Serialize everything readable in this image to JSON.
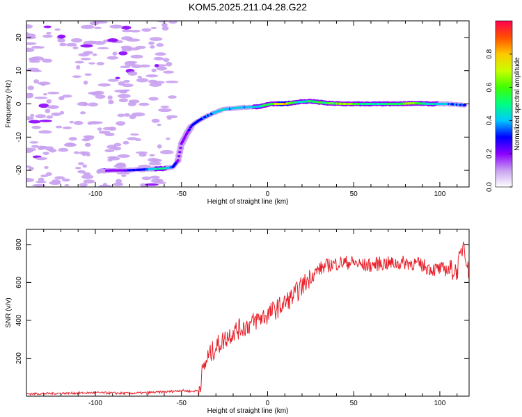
{
  "title": "KOM5.2025.211.04.28.G22",
  "chart_data": [
    {
      "type": "heatmap",
      "xlabel": "Height of straight line (km)",
      "ylabel": "Frequency (Hz)",
      "xlim": [
        -140,
        117
      ],
      "ylim": [
        -25,
        25
      ],
      "xticks": [
        -100,
        -50,
        0,
        50,
        100
      ],
      "yticks": [
        -20,
        -10,
        0,
        10,
        20
      ],
      "colorbar": {
        "label": "Normalized spectral amplitude",
        "range": [
          0,
          1
        ],
        "ticks": [
          "0.0",
          "0.2",
          "0.4",
          "0.6",
          "0.8"
        ],
        "colors": [
          "#ffffff",
          "#c8a0f0",
          "#8c00ff",
          "#0000ff",
          "#00c8ff",
          "#00ff80",
          "#40ff00",
          "#c8ff00",
          "#ffc800",
          "#ff5000",
          "#ff0050"
        ]
      },
      "ridge": [
        {
          "x": -98,
          "y": -20.2,
          "a": 0.12
        },
        {
          "x": -90,
          "y": -20.0,
          "a": 0.18
        },
        {
          "x": -82,
          "y": -20.0,
          "a": 0.24
        },
        {
          "x": -74,
          "y": -19.8,
          "a": 0.3
        },
        {
          "x": -66,
          "y": -19.6,
          "a": 0.42
        },
        {
          "x": -60,
          "y": -19.4,
          "a": 0.5
        },
        {
          "x": -55,
          "y": -19.0,
          "a": 0.3
        },
        {
          "x": -52,
          "y": -17.0,
          "a": 0.22
        },
        {
          "x": -50,
          "y": -12.0,
          "a": 0.18
        },
        {
          "x": -47,
          "y": -9.0,
          "a": 0.22
        },
        {
          "x": -44,
          "y": -6.5,
          "a": 0.26
        },
        {
          "x": -40,
          "y": -5.0,
          "a": 0.3
        },
        {
          "x": -35,
          "y": -3.6,
          "a": 0.34
        },
        {
          "x": -30,
          "y": -2.4,
          "a": 0.4
        },
        {
          "x": -25,
          "y": -1.6,
          "a": 0.42
        },
        {
          "x": -18,
          "y": -1.2,
          "a": 0.4
        },
        {
          "x": -12,
          "y": -1.0,
          "a": 0.4
        },
        {
          "x": -5,
          "y": -0.8,
          "a": 0.45
        },
        {
          "x": 2,
          "y": 0.0,
          "a": 0.55
        },
        {
          "x": 10,
          "y": 0.0,
          "a": 0.85
        },
        {
          "x": 18,
          "y": 0.6,
          "a": 0.45
        },
        {
          "x": 25,
          "y": 0.8,
          "a": 0.5
        },
        {
          "x": 35,
          "y": 0.2,
          "a": 0.55
        },
        {
          "x": 45,
          "y": 0.0,
          "a": 0.7
        },
        {
          "x": 55,
          "y": 0.0,
          "a": 0.5
        },
        {
          "x": 65,
          "y": 0.0,
          "a": 0.45
        },
        {
          "x": 75,
          "y": 0.0,
          "a": 0.55
        },
        {
          "x": 85,
          "y": 0.2,
          "a": 0.65
        },
        {
          "x": 95,
          "y": 0.0,
          "a": 0.45
        },
        {
          "x": 105,
          "y": 0.0,
          "a": 0.4
        },
        {
          "x": 115,
          "y": -0.4,
          "a": 0.3
        }
      ]
    },
    {
      "type": "line",
      "xlabel": "Height of straight line (km)",
      "ylabel": "SNR (v/v)",
      "xlim": [
        -140,
        117
      ],
      "ylim": [
        0,
        880
      ],
      "xticks": [
        -100,
        -50,
        0,
        50,
        100
      ],
      "yticks": [
        200,
        400,
        600,
        800
      ],
      "series": [
        {
          "color": "#e8202a",
          "points": [
            [
              -140,
              12
            ],
            [
              -120,
              15
            ],
            [
              -100,
              18
            ],
            [
              -80,
              15
            ],
            [
              -60,
              22
            ],
            [
              -50,
              30
            ],
            [
              -44,
              25
            ],
            [
              -40,
              30
            ],
            [
              -38,
              120
            ],
            [
              -35,
              200
            ],
            [
              -30,
              260
            ],
            [
              -25,
              300
            ],
            [
              -20,
              340
            ],
            [
              -15,
              360
            ],
            [
              -10,
              380
            ],
            [
              -5,
              410
            ],
            [
              0,
              430
            ],
            [
              5,
              460
            ],
            [
              10,
              490
            ],
            [
              15,
              530
            ],
            [
              20,
              580
            ],
            [
              25,
              630
            ],
            [
              30,
              670
            ],
            [
              35,
              690
            ],
            [
              40,
              700
            ],
            [
              45,
              705
            ],
            [
              50,
              705
            ],
            [
              55,
              690
            ],
            [
              60,
              690
            ],
            [
              65,
              700
            ],
            [
              70,
              700
            ],
            [
              75,
              700
            ],
            [
              80,
              705
            ],
            [
              85,
              700
            ],
            [
              90,
              690
            ],
            [
              95,
              670
            ],
            [
              100,
              670
            ],
            [
              105,
              670
            ],
            [
              110,
              660
            ],
            [
              114,
              820
            ],
            [
              117,
              620
            ]
          ]
        }
      ]
    }
  ]
}
